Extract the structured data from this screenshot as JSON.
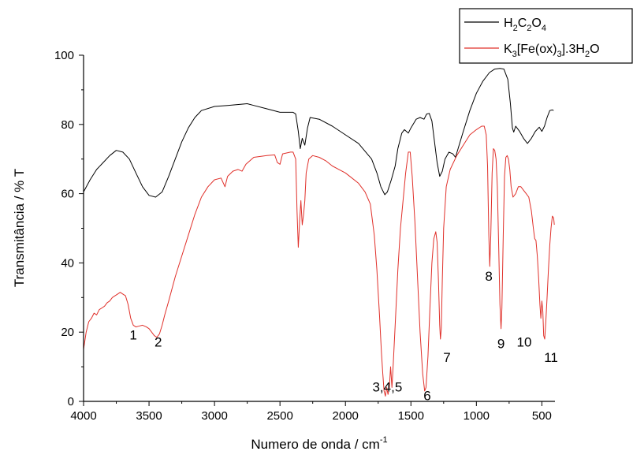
{
  "chart_data": {
    "type": "line",
    "title": "",
    "xlabel": "Numero de onda / cm",
    "xlabel_sup": "-1",
    "ylabel": "Transmitância / % T",
    "xlim": [
      4000,
      400
    ],
    "ylim": [
      0,
      100
    ],
    "x_reversed": true,
    "x_ticks": [
      4000,
      3500,
      3000,
      2500,
      2000,
      1500,
      1000,
      500
    ],
    "y_ticks": [
      0,
      20,
      40,
      60,
      80,
      100
    ],
    "grid": false,
    "legend_position": "top-right",
    "series": [
      {
        "name": "H2C2O4",
        "legend": [
          {
            "t": "H",
            "sub": false
          },
          {
            "t": "2",
            "sub": true
          },
          {
            "t": "C",
            "sub": false
          },
          {
            "t": "2",
            "sub": true
          },
          {
            "t": "O",
            "sub": false
          },
          {
            "t": "4",
            "sub": true
          }
        ],
        "color": "#000000",
        "points": [
          [
            4000,
            60.5
          ],
          [
            3950,
            64
          ],
          [
            3900,
            67
          ],
          [
            3850,
            69
          ],
          [
            3800,
            71
          ],
          [
            3750,
            72.5
          ],
          [
            3700,
            72
          ],
          [
            3650,
            70
          ],
          [
            3600,
            66
          ],
          [
            3550,
            62
          ],
          [
            3500,
            59.5
          ],
          [
            3450,
            59
          ],
          [
            3400,
            60.5
          ],
          [
            3350,
            65
          ],
          [
            3300,
            70
          ],
          [
            3250,
            75
          ],
          [
            3200,
            79
          ],
          [
            3150,
            82
          ],
          [
            3100,
            84
          ],
          [
            3000,
            85.2
          ],
          [
            2900,
            85.5
          ],
          [
            2800,
            85.8
          ],
          [
            2750,
            86
          ],
          [
            2700,
            85.5
          ],
          [
            2600,
            84.5
          ],
          [
            2500,
            83.5
          ],
          [
            2400,
            83.5
          ],
          [
            2380,
            83
          ],
          [
            2360,
            78
          ],
          [
            2345,
            73
          ],
          [
            2330,
            76
          ],
          [
            2310,
            74
          ],
          [
            2290,
            79
          ],
          [
            2270,
            82
          ],
          [
            2200,
            81.5
          ],
          [
            2100,
            79.5
          ],
          [
            2000,
            77
          ],
          [
            1900,
            74.5
          ],
          [
            1800,
            70
          ],
          [
            1760,
            66
          ],
          [
            1730,
            62
          ],
          [
            1700,
            59.7
          ],
          [
            1680,
            60.5
          ],
          [
            1650,
            64
          ],
          [
            1620,
            68
          ],
          [
            1600,
            73
          ],
          [
            1570,
            77.5
          ],
          [
            1550,
            78.5
          ],
          [
            1520,
            77.5
          ],
          [
            1500,
            79
          ],
          [
            1460,
            81.5
          ],
          [
            1430,
            82
          ],
          [
            1400,
            81.5
          ],
          [
            1380,
            83
          ],
          [
            1360,
            83.2
          ],
          [
            1340,
            81
          ],
          [
            1320,
            75
          ],
          [
            1300,
            69
          ],
          [
            1280,
            65
          ],
          [
            1260,
            66.5
          ],
          [
            1240,
            70
          ],
          [
            1210,
            72
          ],
          [
            1180,
            71.5
          ],
          [
            1160,
            70.5
          ],
          [
            1140,
            73
          ],
          [
            1100,
            78
          ],
          [
            1050,
            84
          ],
          [
            1000,
            89
          ],
          [
            950,
            92.5
          ],
          [
            900,
            95
          ],
          [
            860,
            96
          ],
          [
            820,
            96.2
          ],
          [
            790,
            96
          ],
          [
            760,
            93
          ],
          [
            740,
            86
          ],
          [
            725,
            79
          ],
          [
            715,
            77.8
          ],
          [
            700,
            79.5
          ],
          [
            690,
            79
          ],
          [
            670,
            78
          ],
          [
            640,
            76
          ],
          [
            610,
            74.5
          ],
          [
            580,
            76
          ],
          [
            550,
            78
          ],
          [
            520,
            79.2
          ],
          [
            500,
            78
          ],
          [
            480,
            79.5
          ],
          [
            460,
            82
          ],
          [
            440,
            84
          ],
          [
            420,
            84.2
          ],
          [
            410,
            84
          ]
        ]
      },
      {
        "name": "K3[Fe(ox)3].3H2O",
        "legend": [
          {
            "t": "K",
            "sub": false
          },
          {
            "t": "3",
            "sub": true
          },
          {
            "t": "[Fe(ox)",
            "sub": false
          },
          {
            "t": "3",
            "sub": true
          },
          {
            "t": "].3H",
            "sub": false
          },
          {
            "t": "2",
            "sub": true
          },
          {
            "t": "O",
            "sub": false
          }
        ],
        "color": "#e0302a",
        "points": [
          [
            4000,
            15
          ],
          [
            3980,
            20
          ],
          [
            3960,
            23
          ],
          [
            3940,
            24
          ],
          [
            3920,
            25.5
          ],
          [
            3900,
            25
          ],
          [
            3880,
            26.5
          ],
          [
            3860,
            27
          ],
          [
            3840,
            27.5
          ],
          [
            3820,
            28.5
          ],
          [
            3800,
            29
          ],
          [
            3780,
            30
          ],
          [
            3760,
            30.5
          ],
          [
            3740,
            31
          ],
          [
            3720,
            31.5
          ],
          [
            3700,
            31
          ],
          [
            3680,
            30.5
          ],
          [
            3660,
            28
          ],
          [
            3640,
            24
          ],
          [
            3620,
            22
          ],
          [
            3600,
            21.5
          ],
          [
            3580,
            21.7
          ],
          [
            3550,
            22
          ],
          [
            3520,
            21.5
          ],
          [
            3500,
            21
          ],
          [
            3480,
            20
          ],
          [
            3460,
            19
          ],
          [
            3440,
            18.5
          ],
          [
            3420,
            19.5
          ],
          [
            3400,
            22
          ],
          [
            3380,
            25
          ],
          [
            3350,
            29
          ],
          [
            3300,
            36
          ],
          [
            3250,
            42
          ],
          [
            3200,
            48
          ],
          [
            3150,
            54
          ],
          [
            3100,
            59
          ],
          [
            3050,
            62
          ],
          [
            3000,
            64
          ],
          [
            2950,
            64.5
          ],
          [
            2920,
            62
          ],
          [
            2900,
            65
          ],
          [
            2860,
            66.5
          ],
          [
            2820,
            67
          ],
          [
            2790,
            66.5
          ],
          [
            2760,
            68.5
          ],
          [
            2700,
            70.5
          ],
          [
            2600,
            71
          ],
          [
            2540,
            71.2
          ],
          [
            2520,
            69
          ],
          [
            2500,
            68.5
          ],
          [
            2480,
            71.5
          ],
          [
            2420,
            72
          ],
          [
            2400,
            72
          ],
          [
            2380,
            70
          ],
          [
            2370,
            55
          ],
          [
            2360,
            44.5
          ],
          [
            2350,
            52
          ],
          [
            2340,
            58
          ],
          [
            2330,
            51
          ],
          [
            2320,
            54
          ],
          [
            2310,
            58
          ],
          [
            2300,
            66
          ],
          [
            2280,
            70
          ],
          [
            2250,
            71
          ],
          [
            2200,
            70.5
          ],
          [
            2150,
            69.5
          ],
          [
            2100,
            68
          ],
          [
            2050,
            67
          ],
          [
            2000,
            66
          ],
          [
            1950,
            64.5
          ],
          [
            1900,
            63
          ],
          [
            1850,
            60.5
          ],
          [
            1810,
            57
          ],
          [
            1780,
            48
          ],
          [
            1760,
            38
          ],
          [
            1740,
            25
          ],
          [
            1725,
            14
          ],
          [
            1715,
            8
          ],
          [
            1705,
            3
          ],
          [
            1695,
            1.5
          ],
          [
            1685,
            4
          ],
          [
            1675,
            2
          ],
          [
            1665,
            4
          ],
          [
            1655,
            10
          ],
          [
            1645,
            4
          ],
          [
            1635,
            11
          ],
          [
            1620,
            22
          ],
          [
            1600,
            38
          ],
          [
            1580,
            50
          ],
          [
            1560,
            58
          ],
          [
            1540,
            66
          ],
          [
            1520,
            72
          ],
          [
            1505,
            72
          ],
          [
            1490,
            65
          ],
          [
            1470,
            52
          ],
          [
            1450,
            36
          ],
          [
            1430,
            20
          ],
          [
            1410,
            8
          ],
          [
            1395,
            3
          ],
          [
            1385,
            4
          ],
          [
            1370,
            13
          ],
          [
            1355,
            27
          ],
          [
            1340,
            40
          ],
          [
            1325,
            47
          ],
          [
            1310,
            49
          ],
          [
            1300,
            46
          ],
          [
            1290,
            35
          ],
          [
            1280,
            22
          ],
          [
            1275,
            18
          ],
          [
            1268,
            21
          ],
          [
            1260,
            35
          ],
          [
            1250,
            50
          ],
          [
            1230,
            62
          ],
          [
            1200,
            67
          ],
          [
            1150,
            71
          ],
          [
            1100,
            74
          ],
          [
            1050,
            77
          ],
          [
            1000,
            78.5
          ],
          [
            960,
            79.5
          ],
          [
            940,
            79.5
          ],
          [
            925,
            77
          ],
          [
            915,
            68
          ],
          [
            905,
            48
          ],
          [
            898,
            39
          ],
          [
            890,
            48
          ],
          [
            880,
            66
          ],
          [
            870,
            73
          ],
          [
            860,
            72.5
          ],
          [
            850,
            70
          ],
          [
            840,
            62
          ],
          [
            830,
            45
          ],
          [
            820,
            28
          ],
          [
            812,
            21
          ],
          [
            805,
            27
          ],
          [
            795,
            48
          ],
          [
            785,
            65
          ],
          [
            775,
            70.5
          ],
          [
            765,
            71
          ],
          [
            755,
            70
          ],
          [
            745,
            67
          ],
          [
            735,
            62
          ],
          [
            720,
            59
          ],
          [
            700,
            60
          ],
          [
            680,
            62
          ],
          [
            660,
            62
          ],
          [
            640,
            61
          ],
          [
            620,
            60
          ],
          [
            600,
            59
          ],
          [
            580,
            55
          ],
          [
            565,
            50
          ],
          [
            555,
            47
          ],
          [
            545,
            46.5
          ],
          [
            535,
            42
          ],
          [
            525,
            36
          ],
          [
            515,
            28
          ],
          [
            508,
            24
          ],
          [
            500,
            29
          ],
          [
            493,
            26
          ],
          [
            486,
            19
          ],
          [
            478,
            18
          ],
          [
            470,
            23
          ],
          [
            460,
            30
          ],
          [
            450,
            38
          ],
          [
            440,
            45
          ],
          [
            430,
            50
          ],
          [
            420,
            53.5
          ],
          [
            410,
            53
          ],
          [
            405,
            51
          ]
        ]
      }
    ],
    "annotations": [
      {
        "label": "1",
        "x": 3620,
        "y": 21.5
      },
      {
        "label": "2",
        "x": 3430,
        "y": 19.5
      },
      {
        "label": "3,4,5",
        "x": 1680,
        "y": 6.5
      },
      {
        "label": "6",
        "x": 1375,
        "y": 4
      },
      {
        "label": "7",
        "x": 1225,
        "y": 15
      },
      {
        "label": "8",
        "x": 905,
        "y": 38.5
      },
      {
        "label": "9",
        "x": 812,
        "y": 19
      },
      {
        "label": "10",
        "x": 635,
        "y": 19.5
      },
      {
        "label": "11",
        "x": 430,
        "y": 15
      }
    ]
  }
}
